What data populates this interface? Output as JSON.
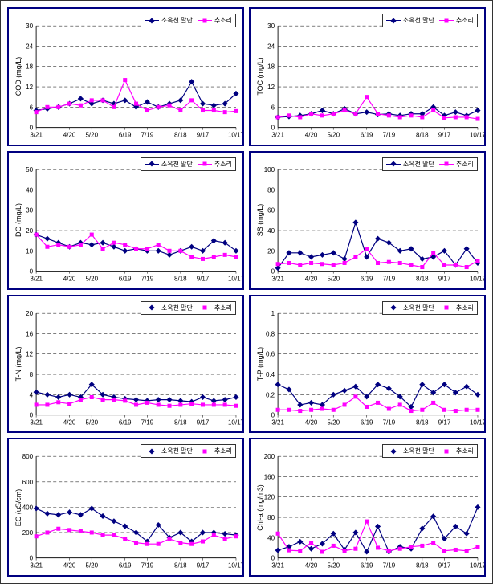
{
  "global": {
    "x_categories": [
      "3/21",
      "4/20",
      "5/20",
      "6/19",
      "7/19",
      "8/18",
      "9/17",
      "10/17"
    ],
    "series_names": [
      "소옥천 말단",
      "추소리"
    ],
    "colors": {
      "series1": "#000080",
      "series2": "#ff00ff",
      "grid": "#333333",
      "axis": "#222222",
      "panel_border": "#000080",
      "background": "#ffffff",
      "text": "#000000"
    },
    "markers": {
      "series1_shape": "diamond",
      "series2_shape": "square"
    },
    "line_width": 1.2,
    "marker_size": 5,
    "dash_pattern": "4 3",
    "font_size_axis": 8,
    "font_size_label": 9,
    "font_size_legend": 8
  },
  "panels": [
    {
      "id": "cod",
      "ylabel": "COD (mg/L)",
      "ymin": 0,
      "ymax": 30,
      "ystep": 6,
      "series1": [
        5,
        5.5,
        6,
        7,
        8.5,
        7,
        8,
        7,
        8,
        6,
        7.5,
        6,
        7,
        8,
        13.5,
        7,
        6.5,
        7,
        10
      ],
      "series2": [
        4.5,
        6,
        6,
        7,
        6.5,
        8,
        8,
        6,
        14,
        7,
        5,
        6,
        6.5,
        5,
        8,
        5,
        5,
        4.5,
        4.8
      ]
    },
    {
      "id": "toc",
      "ylabel": "TOC (mg/L)",
      "ymin": 0,
      "ymax": 30,
      "ystep": 6,
      "series1": [
        3,
        3.2,
        3.5,
        4,
        5,
        4,
        5.5,
        4,
        4.5,
        3.8,
        4,
        3.5,
        4,
        4,
        6,
        3.5,
        4.5,
        3.5,
        5
      ],
      "series2": [
        3,
        3.5,
        3,
        4,
        3.5,
        4,
        5,
        4,
        9,
        4,
        3.5,
        3,
        3.5,
        3,
        5,
        2.8,
        3,
        3,
        2.5
      ]
    },
    {
      "id": "do",
      "ylabel": "DO (mg/L)",
      "ymin": 0,
      "ymax": 50,
      "ystep": 10,
      "series1": [
        18,
        16,
        14,
        12,
        14,
        13,
        14,
        12,
        10,
        11,
        10,
        10,
        8,
        10,
        12,
        10,
        15,
        14,
        10
      ],
      "series2": [
        18,
        12,
        13,
        12,
        13,
        18,
        11,
        14,
        13,
        11,
        11,
        13,
        10,
        10,
        7,
        6,
        7,
        8,
        7
      ]
    },
    {
      "id": "ss",
      "ylabel": "SS (mg/L)",
      "ymin": 0,
      "ymax": 100,
      "ystep": 20,
      "series1": [
        3,
        18,
        18,
        14,
        16,
        18,
        12,
        48,
        14,
        32,
        28,
        20,
        22,
        12,
        14,
        20,
        6,
        22,
        8
      ],
      "series2": [
        7,
        8,
        6,
        8,
        7,
        6,
        8,
        14,
        22,
        8,
        9,
        8,
        6,
        4,
        18,
        6,
        6,
        4,
        10
      ]
    },
    {
      "id": "tn",
      "ylabel": "T-N (mg/L)",
      "ymin": 0,
      "ymax": 20,
      "ystep": 4,
      "series1": [
        4.5,
        4,
        3.5,
        4,
        3.5,
        6,
        4,
        3.5,
        3.2,
        3,
        2.8,
        3,
        3,
        2.8,
        2.6,
        3.5,
        2.8,
        3,
        3.5
      ],
      "series2": [
        2,
        2,
        2.5,
        2.2,
        3,
        3.5,
        3,
        3,
        2.8,
        2,
        2.4,
        2,
        1.8,
        2,
        2.2,
        2,
        2,
        2,
        1.8
      ]
    },
    {
      "id": "tp",
      "ylabel": "T-P (mg/L)",
      "ymin": 0,
      "ymax": 1,
      "ystep": 0.2,
      "series1": [
        0.3,
        0.25,
        0.1,
        0.12,
        0.1,
        0.2,
        0.24,
        0.28,
        0.18,
        0.3,
        0.26,
        0.18,
        0.08,
        0.3,
        0.22,
        0.3,
        0.22,
        0.28,
        0.2
      ],
      "series2": [
        0.05,
        0.05,
        0.04,
        0.05,
        0.06,
        0.05,
        0.1,
        0.18,
        0.08,
        0.12,
        0.06,
        0.1,
        0.04,
        0.05,
        0.12,
        0.05,
        0.04,
        0.05,
        0.05
      ]
    },
    {
      "id": "ec",
      "ylabel": "EC (uS/cm)",
      "ymin": 0,
      "ymax": 800,
      "ystep": 200,
      "series1": [
        390,
        350,
        340,
        360,
        340,
        390,
        330,
        290,
        250,
        200,
        130,
        260,
        160,
        200,
        130,
        200,
        200,
        190,
        180
      ],
      "series2": [
        170,
        200,
        230,
        220,
        210,
        200,
        180,
        180,
        150,
        120,
        110,
        110,
        150,
        120,
        110,
        130,
        180,
        150,
        170
      ]
    },
    {
      "id": "chla",
      "ylabel": "Chl-a (mg/m3)",
      "ymin": 0,
      "ymax": 200,
      "ystep": 40,
      "series1": [
        15,
        22,
        32,
        18,
        28,
        48,
        16,
        50,
        12,
        62,
        12,
        22,
        18,
        58,
        82,
        38,
        62,
        48,
        100
      ],
      "series2": [
        48,
        15,
        14,
        30,
        12,
        24,
        14,
        18,
        72,
        20,
        14,
        18,
        22,
        24,
        30,
        14,
        16,
        14,
        22
      ]
    }
  ]
}
